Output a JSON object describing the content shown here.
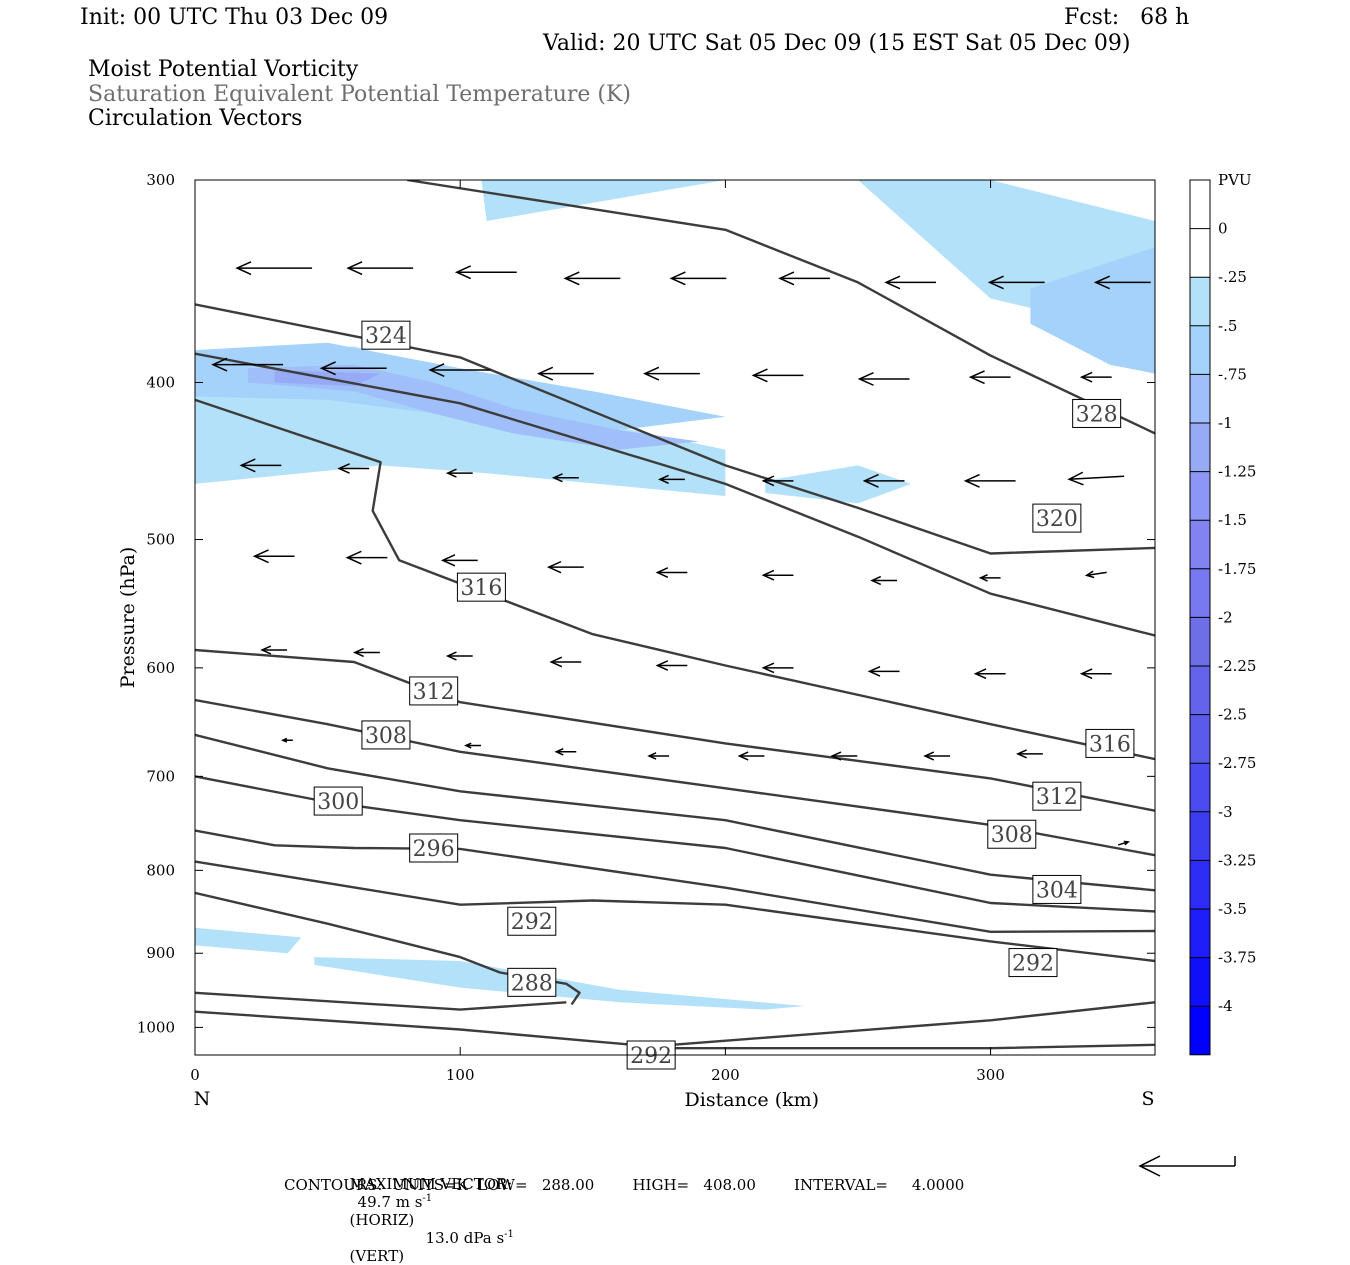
{
  "header": {
    "init": "Init: 00 UTC Thu 03 Dec 09",
    "fcst": "Fcst:   68 h",
    "valid": "Valid: 20 UTC Sat 05 Dec 09 (15 EST Sat 05 Dec 09)",
    "field1": "Moist Potential Vorticity",
    "field2": "Saturation Equivalent Potential Temperature (K)",
    "field3": "Circulation Vectors"
  },
  "footer": {
    "max_vector_label": "MAXIMUM VECTOR:",
    "max_horiz": "49.7 m s",
    "horiz_tag": "(HORIZ)",
    "max_vert": "13.0 dPa s",
    "vert_tag": "(VERT)",
    "exponent": "-1",
    "contours_line": "CONTOURS:  UNITS=K  LOW=   288.00        HIGH=   408.00        INTERVAL=     4.0000"
  },
  "colors": {
    "contour": "#3c3c3c",
    "pv_neg_025": "#b4e1fa",
    "pv_neg_050": "#a5d2fa",
    "pv_neg_075": "#a0befa",
    "pv_neg_100": "#96aaf5"
  },
  "chart_data": {
    "type": "cross-section",
    "xlabel": "Distance (km)",
    "ylabel": "Pressure (hPa)",
    "x_ticks": [
      0,
      100,
      200,
      300
    ],
    "y_ticks": [
      300,
      400,
      500,
      600,
      700,
      800,
      900,
      1000
    ],
    "xlim": [
      0,
      362
    ],
    "ylim": [
      300,
      1040
    ],
    "y_log": true,
    "x_end_labels": {
      "left": "N",
      "right": "S"
    },
    "contour_interval": 4,
    "contour_lines": [
      {
        "value": 328,
        "label": "328",
        "label_at": [
          340,
          418
        ],
        "x": [
          80,
          200,
          250,
          300,
          362
        ],
        "p": [
          300,
          322,
          347,
          385,
          430
        ]
      },
      {
        "value": 324,
        "label": "324",
        "label_at": [
          72,
          374
        ],
        "x": [
          0,
          100,
          200,
          250,
          300,
          362
        ],
        "p": [
          358,
          386,
          450,
          478,
          510,
          506
        ]
      },
      {
        "value": 320,
        "label": "320",
        "label_at": [
          325,
          485
        ],
        "x": [
          0,
          100,
          200,
          250,
          300,
          362
        ],
        "p": [
          384,
          412,
          462,
          498,
          540,
          573
        ]
      },
      {
        "value": 316,
        "label": "316",
        "label_at": [
          108,
          535
        ],
        "x": [
          0,
          70,
          67,
          77,
          150,
          200,
          300,
          362
        ],
        "p": [
          410,
          448,
          480,
          515,
          572,
          598,
          650,
          683
        ]
      },
      {
        "value": 316,
        "label": "316",
        "label_at": [
          345,
          668
        ],
        "x": [],
        "p": []
      },
      {
        "value": 312,
        "label": "312",
        "label_at": [
          90,
          620
        ],
        "x": [
          0,
          60,
          100,
          200,
          300,
          362
        ],
        "p": [
          585,
          595,
          630,
          668,
          702,
          735
        ]
      },
      {
        "value": 312,
        "label": "312",
        "label_at": [
          325,
          720
        ],
        "x": [],
        "p": []
      },
      {
        "value": 308,
        "label": "308",
        "label_at": [
          72,
          660
        ],
        "x": [
          0,
          50,
          100,
          200,
          300,
          362
        ],
        "p": [
          628,
          650,
          676,
          712,
          750,
          783
        ]
      },
      {
        "value": 308,
        "label": "308",
        "label_at": [
          308,
          760
        ],
        "x": [],
        "p": []
      },
      {
        "value": 304,
        "label": "304",
        "label_at": [
          325,
          822
        ],
        "x": [
          0,
          50,
          100,
          200,
          300,
          362
        ],
        "p": [
          660,
          692,
          715,
          745,
          805,
          823
        ]
      },
      {
        "value": 300,
        "label": "300",
        "label_at": [
          54,
          725
        ],
        "x": [
          0,
          50,
          100,
          200,
          300,
          362
        ],
        "p": [
          700,
          726,
          745,
          775,
          838,
          848
        ]
      },
      {
        "value": 296,
        "label": "296",
        "label_at": [
          90,
          775
        ],
        "x": [
          0,
          30,
          60,
          100,
          200,
          300,
          362
        ],
        "p": [
          756,
          772,
          775,
          776,
          820,
          873,
          872
        ]
      },
      {
        "value": 292,
        "label": "292",
        "label_at": [
          316,
          912
        ],
        "x": [
          0,
          100,
          150,
          200,
          300,
          362
        ],
        "p": [
          790,
          840,
          835,
          840,
          885,
          910
        ]
      },
      {
        "value": 292,
        "label": "292",
        "label_at": [
          127,
          860
        ],
        "x": [],
        "p": []
      },
      {
        "value": 288,
        "label": "288",
        "label_at": [
          127,
          938
        ],
        "x": [
          0,
          50,
          100,
          115,
          140,
          145,
          142
        ],
        "p": [
          826,
          863,
          905,
          925,
          940,
          952,
          968
        ]
      },
      {
        "value": 292,
        "label": "292",
        "label_at": [
          172,
          1040
        ],
        "x": [
          0,
          100,
          150,
          180,
          250,
          300,
          362
        ],
        "p": [
          978,
          1003,
          1020,
          1030,
          1030,
          1030,
          1025
        ]
      },
      {
        "value": 290,
        "label": "",
        "label_at": null,
        "x": [
          0,
          100,
          140
        ],
        "p": [
          952,
          975,
          965
        ]
      },
      {
        "value": 290,
        "label": "",
        "label_at": null,
        "x": [
          180,
          300,
          362
        ],
        "p": [
          1025,
          990,
          965
        ]
      }
    ],
    "pv_fill_regions": [
      {
        "level": -0.25,
        "x": [
          108,
          140,
          300,
          362,
          362,
          300,
          250,
          200,
          110
        ],
        "p": [
          300,
          300,
          300,
          318,
          375,
          355,
          300,
          300,
          318
        ]
      },
      {
        "level": -0.25,
        "x": [
          0,
          60,
          90,
          110,
          200,
          200,
          110,
          70,
          0
        ],
        "p": [
          388,
          380,
          392,
          410,
          440,
          470,
          455,
          450,
          462
        ]
      },
      {
        "level": -0.25,
        "x": [
          215,
          250,
          270,
          250,
          215
        ],
        "p": [
          460,
          450,
          462,
          475,
          468
        ]
      },
      {
        "level": -0.25,
        "x": [
          0,
          40,
          35,
          0
        ],
        "p": [
          868,
          880,
          900,
          890
        ]
      },
      {
        "level": -0.25,
        "x": [
          45,
          100,
          160,
          230,
          215,
          160,
          100,
          45
        ],
        "p": [
          905,
          910,
          948,
          970,
          975,
          965,
          945,
          915
        ]
      },
      {
        "level": -0.5,
        "x": [
          0,
          50,
          100,
          150,
          200,
          150,
          100,
          50,
          0
        ],
        "p": [
          382,
          378,
          392,
          405,
          420,
          430,
          420,
          410,
          408
        ]
      },
      {
        "level": -0.5,
        "x": [
          315,
          362,
          362,
          345,
          315
        ],
        "p": [
          350,
          330,
          395,
          390,
          368
        ]
      },
      {
        "level": -0.75,
        "x": [
          20,
          60,
          90,
          120,
          160,
          190,
          160,
          120,
          90,
          60,
          20
        ],
        "p": [
          392,
          390,
          400,
          415,
          428,
          435,
          440,
          430,
          418,
          405,
          400
        ]
      },
      {
        "level": -1,
        "x": [
          30,
          70,
          60,
          30
        ],
        "p": [
          393,
          395,
          402,
          400
        ]
      }
    ],
    "circulation_vectors": [
      {
        "x": 30,
        "p": 340,
        "u": -15,
        "w": 0
      },
      {
        "x": 70,
        "p": 340,
        "u": -13,
        "w": 0
      },
      {
        "x": 110,
        "p": 342,
        "u": -12,
        "w": 0
      },
      {
        "x": 150,
        "p": 345,
        "u": -11,
        "w": 0
      },
      {
        "x": 190,
        "p": 345,
        "u": -11,
        "w": 0
      },
      {
        "x": 230,
        "p": 345,
        "u": -10,
        "w": 0
      },
      {
        "x": 270,
        "p": 347,
        "u": -10,
        "w": 0
      },
      {
        "x": 310,
        "p": 347,
        "u": -11,
        "w": 0
      },
      {
        "x": 350,
        "p": 347,
        "u": -11,
        "w": 0
      },
      {
        "x": 20,
        "p": 390,
        "u": -14,
        "w": 0
      },
      {
        "x": 60,
        "p": 392,
        "u": -13,
        "w": 0
      },
      {
        "x": 100,
        "p": 393,
        "u": -12,
        "w": 0
      },
      {
        "x": 140,
        "p": 395,
        "u": -11,
        "w": 0
      },
      {
        "x": 180,
        "p": 395,
        "u": -11,
        "w": 0
      },
      {
        "x": 220,
        "p": 396,
        "u": -10,
        "w": 0
      },
      {
        "x": 260,
        "p": 398,
        "u": -10,
        "w": 0
      },
      {
        "x": 300,
        "p": 397,
        "u": -8,
        "w": 0
      },
      {
        "x": 340,
        "p": 397,
        "u": -6,
        "w": 0
      },
      {
        "x": 25,
        "p": 450,
        "u": -8,
        "w": 0
      },
      {
        "x": 60,
        "p": 452,
        "u": -6,
        "w": 0
      },
      {
        "x": 100,
        "p": 455,
        "u": -5,
        "w": 0
      },
      {
        "x": 140,
        "p": 458,
        "u": -5,
        "w": 0
      },
      {
        "x": 180,
        "p": 459,
        "u": -5,
        "w": 0
      },
      {
        "x": 220,
        "p": 460,
        "u": -6,
        "w": 0
      },
      {
        "x": 260,
        "p": 460,
        "u": -8,
        "w": 0
      },
      {
        "x": 300,
        "p": 460,
        "u": -10,
        "w": 0
      },
      {
        "x": 340,
        "p": 458,
        "u": -11,
        "w": -1
      },
      {
        "x": 30,
        "p": 512,
        "u": -8,
        "w": 0
      },
      {
        "x": 65,
        "p": 513,
        "u": -8,
        "w": 0
      },
      {
        "x": 100,
        "p": 515,
        "u": -7,
        "w": 0
      },
      {
        "x": 140,
        "p": 520,
        "u": -7,
        "w": 0
      },
      {
        "x": 180,
        "p": 524,
        "u": -6,
        "w": 0
      },
      {
        "x": 220,
        "p": 526,
        "u": -6,
        "w": 0
      },
      {
        "x": 260,
        "p": 530,
        "u": -5,
        "w": 0
      },
      {
        "x": 300,
        "p": 528,
        "u": -4,
        "w": 0
      },
      {
        "x": 340,
        "p": 525,
        "u": -4,
        "w": -1
      },
      {
        "x": 30,
        "p": 585,
        "u": -5,
        "w": 0
      },
      {
        "x": 65,
        "p": 587,
        "u": -5,
        "w": 0
      },
      {
        "x": 100,
        "p": 590,
        "u": -5,
        "w": 0
      },
      {
        "x": 140,
        "p": 595,
        "u": -6,
        "w": 0
      },
      {
        "x": 180,
        "p": 598,
        "u": -6,
        "w": 0
      },
      {
        "x": 220,
        "p": 600,
        "u": -6,
        "w": 0
      },
      {
        "x": 260,
        "p": 603,
        "u": -6,
        "w": 0
      },
      {
        "x": 300,
        "p": 605,
        "u": -6,
        "w": 0
      },
      {
        "x": 340,
        "p": 605,
        "u": -6,
        "w": 0
      },
      {
        "x": 35,
        "p": 665,
        "u": -2,
        "w": 0
      },
      {
        "x": 70,
        "p": 667,
        "u": -3,
        "w": 0
      },
      {
        "x": 105,
        "p": 670,
        "u": -3,
        "w": 0
      },
      {
        "x": 140,
        "p": 676,
        "u": -4,
        "w": 0
      },
      {
        "x": 175,
        "p": 680,
        "u": -4,
        "w": 0
      },
      {
        "x": 210,
        "p": 680,
        "u": -5,
        "w": 0
      },
      {
        "x": 245,
        "p": 680,
        "u": -5,
        "w": 0
      },
      {
        "x": 280,
        "p": 680,
        "u": -5,
        "w": 0
      },
      {
        "x": 315,
        "p": 678,
        "u": -5,
        "w": 0
      },
      {
        "x": 350,
        "p": 675,
        "u": -4,
        "w": -1
      },
      {
        "x": 310,
        "p": 772,
        "u": -1,
        "w": 0
      },
      {
        "x": 350,
        "p": 770,
        "u": 2,
        "w": 1
      }
    ],
    "reference_vector": {
      "horiz": 49.7,
      "horiz_units": "m s-1",
      "vert": 13.0,
      "vert_units": "dPa s-1"
    },
    "colorbar": {
      "title": "PVU",
      "levels": [
        "0",
        "-.25",
        "-.5",
        "-.75",
        "-1",
        "-1.25",
        "-1.5",
        "-1.75",
        "-2",
        "-2.25",
        "-2.5",
        "-2.75",
        "-3",
        "-3.25",
        "-3.5",
        "-3.75",
        "-4"
      ],
      "colors": [
        "#ffffff",
        "#ffffff",
        "#b4e1fa",
        "#a5d2fa",
        "#a0befa",
        "#96aaf5",
        "#8c96f5",
        "#8282f0",
        "#7878f0",
        "#6e6ee6",
        "#6464eb",
        "#5a5aeb",
        "#4b4bf0",
        "#3c3cf0",
        "#2d2df5",
        "#1e1efa",
        "#0f0ffa",
        "#0000ff"
      ]
    }
  }
}
